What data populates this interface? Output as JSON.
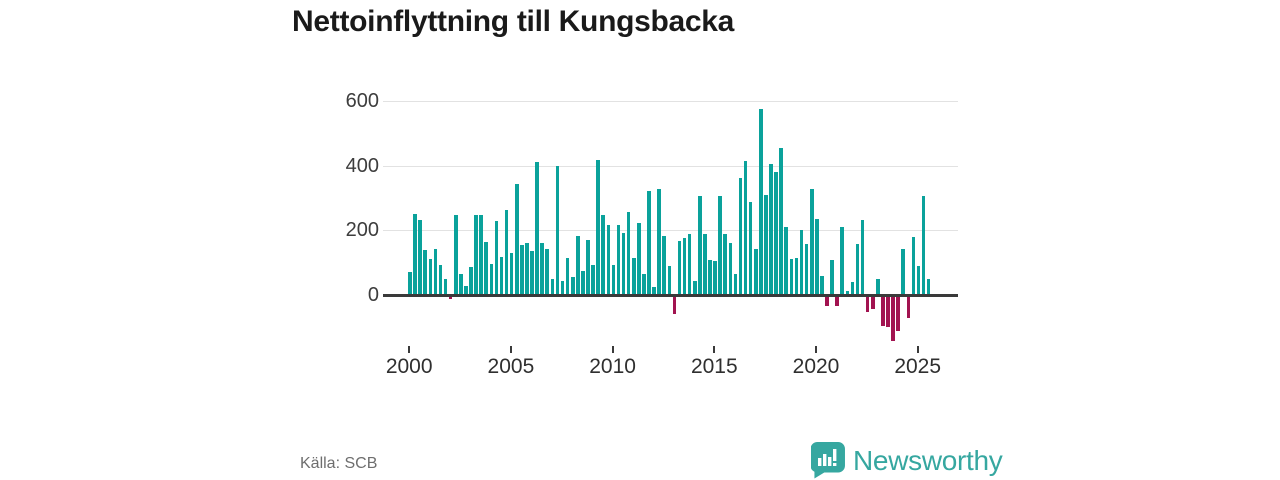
{
  "title": "Nettoinflyttning till Kungsbacka",
  "source": "Källa: SCB",
  "brand": {
    "name": "Newsworthy",
    "color": "#36a7a0",
    "icon": "bar-chart-speech-bubble-icon"
  },
  "colors": {
    "bar_positive": "#0aa29b",
    "bar_negative": "#a21350",
    "gridline": "#e2e2e2",
    "zero_line": "#3a3a3a",
    "axis_text": "#3d3d3d",
    "title_text": "#1a1a1a",
    "muted_text": "#6e6e6e"
  },
  "chart_data": {
    "type": "bar",
    "title": "Nettoinflyttning till Kungsbacka",
    "frequency": "quarterly",
    "x_start": "2000-Q1",
    "x_end": "2025-Q3",
    "x_tick_years": [
      2000,
      2005,
      2010,
      2015,
      2020,
      2025
    ],
    "y_ticks": [
      0,
      200,
      400,
      600
    ],
    "ylim": [
      -150,
      600
    ],
    "grid": "horizontal",
    "legend": "none",
    "ylabel": "",
    "xlabel": "",
    "values": [
      70,
      250,
      232,
      140,
      112,
      143,
      93,
      50,
      -12,
      248,
      64,
      28,
      88,
      248,
      248,
      165,
      95,
      228,
      117,
      262,
      130,
      344,
      155,
      162,
      136,
      410,
      162,
      141,
      48,
      400,
      42,
      114,
      57,
      184,
      73,
      169,
      92,
      418,
      246,
      215,
      94,
      217,
      193,
      258,
      114,
      223,
      66,
      322,
      25,
      328,
      182,
      90,
      -58,
      168,
      176,
      188,
      43,
      305,
      188,
      109,
      106,
      306,
      190,
      161,
      66,
      362,
      415,
      288,
      143,
      575,
      310,
      405,
      380,
      455,
      210,
      112,
      114,
      200,
      159,
      327,
      236,
      58,
      -33,
      109,
      -35,
      211,
      11,
      40,
      158,
      233,
      -54,
      -43,
      49,
      -95,
      -100,
      -141,
      -110,
      142,
      -70,
      180,
      91,
      307,
      49
    ]
  }
}
